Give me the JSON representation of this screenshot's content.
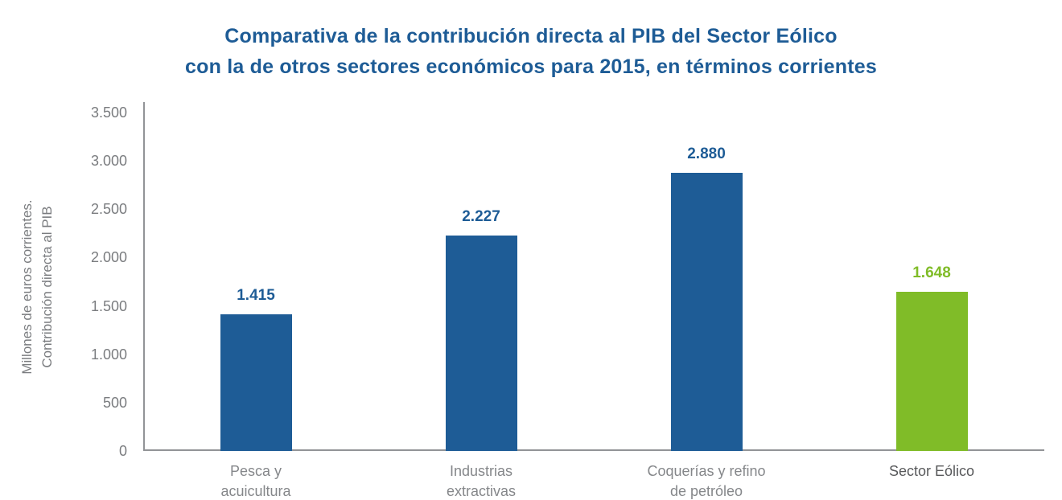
{
  "title": {
    "line1": "Comparativa de la contribución directa al PIB del Sector Eólico",
    "line2": "con la de otros sectores económicos para 2015, en términos corrientes"
  },
  "colors": {
    "title_blue": "#1E5C96",
    "bar_blue": "#1E5C96",
    "bar_green": "#80BC28",
    "axis_line": "#929497",
    "tick_text": "#7A7C7F",
    "category_text": "#85878A",
    "category_text_emphasis": "#58595B"
  },
  "chart_data": {
    "type": "bar",
    "title": "Comparativa de la contribución directa al PIB del Sector Eólico con la de otros sectores económicos para 2015, en términos corrientes",
    "xlabel": "",
    "ylabel": "Millones de euros corrientes. Contribución directa al PIB",
    "ylabel_lines": [
      "Millones de euros corrientes.",
      "Contribución directa al PIB"
    ],
    "ylim": [
      0,
      3500
    ],
    "ytick_interval": 500,
    "ytick_labels": [
      "0",
      "500",
      "1.000",
      "1.500",
      "2.000",
      "2.500",
      "3.000",
      "3.500"
    ],
    "grid": false,
    "legend_position": "none",
    "categories": [
      "Pesca y acuicultura",
      "Industrias extractivas",
      "Coquerías y refino de petróleo",
      "Sector Eólico"
    ],
    "bars": [
      {
        "category": "Pesca y acuicultura",
        "category_lines": [
          "Pesca y",
          "acuicultura"
        ],
        "value": 1415,
        "value_label": "1.415",
        "bar_color": "#1E5C96",
        "value_label_color": "#1E5C96",
        "category_label_color": "#85878A"
      },
      {
        "category": "Industrias extractivas",
        "category_lines": [
          "Industrias",
          "extractivas"
        ],
        "value": 2227,
        "value_label": "2.227",
        "bar_color": "#1E5C96",
        "value_label_color": "#1E5C96",
        "category_label_color": "#85878A"
      },
      {
        "category": "Coquerías y refino de petróleo",
        "category_lines": [
          "Coquerías y refino",
          "de petróleo"
        ],
        "value": 2880,
        "value_label": "2.880",
        "bar_color": "#1E5C96",
        "value_label_color": "#1E5C96",
        "category_label_color": "#85878A"
      },
      {
        "category": "Sector Eólico",
        "category_lines": [
          "Sector Eólico"
        ],
        "value": 1648,
        "value_label": "1.648",
        "bar_color": "#80BC28",
        "value_label_color": "#80BC28",
        "category_label_color": "#58595B"
      }
    ]
  }
}
